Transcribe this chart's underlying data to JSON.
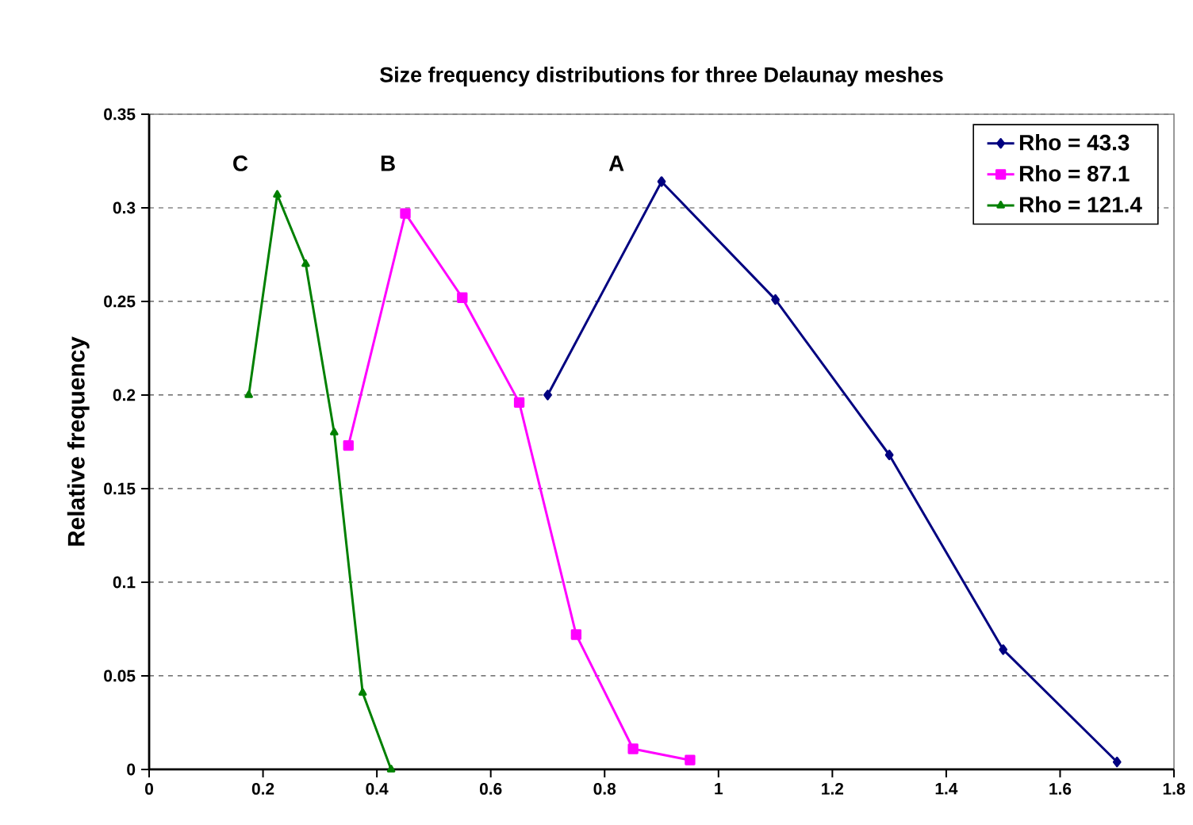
{
  "chart_data": {
    "type": "line",
    "title": "Size frequency distributions for three Delaunay meshes",
    "ylabel": "Relative frequency",
    "xlim": [
      0,
      1.8
    ],
    "xticks": [
      0,
      0.2,
      0.4,
      0.6,
      0.8,
      1,
      1.2,
      1.4,
      1.6,
      1.8
    ],
    "ylim": [
      0,
      0.35
    ],
    "yticks": [
      0,
      0.05,
      0.1,
      0.15,
      0.2,
      0.25,
      0.3,
      0.35
    ],
    "grid": "y",
    "legend": "top right",
    "line_style": "solid",
    "series": [
      {
        "name": "Rho = 43.3",
        "color": "#000080",
        "marker": "diamond",
        "x": [
          0.7,
          0.9,
          1.1,
          1.3,
          1.5,
          1.7
        ],
        "values": [
          0.2,
          0.314,
          0.251,
          0.168,
          0.064,
          0.004
        ]
      },
      {
        "name": "Rho = 87.1",
        "color": "#ff00ff",
        "marker": "square",
        "x": [
          0.35,
          0.45,
          0.55,
          0.65,
          0.75,
          0.85,
          0.95
        ],
        "values": [
          0.173,
          0.297,
          0.252,
          0.196,
          0.072,
          0.011,
          0.005
        ]
      },
      {
        "name": "Rho = 121.4",
        "color": "#008000",
        "marker": "triangle",
        "x": [
          0.175,
          0.225,
          0.275,
          0.325,
          0.375,
          0.425
        ],
        "values": [
          0.2,
          0.307,
          0.27,
          0.18,
          0.041,
          0.0
        ]
      }
    ],
    "annotations": [
      "C",
      "B",
      "A"
    ]
  }
}
